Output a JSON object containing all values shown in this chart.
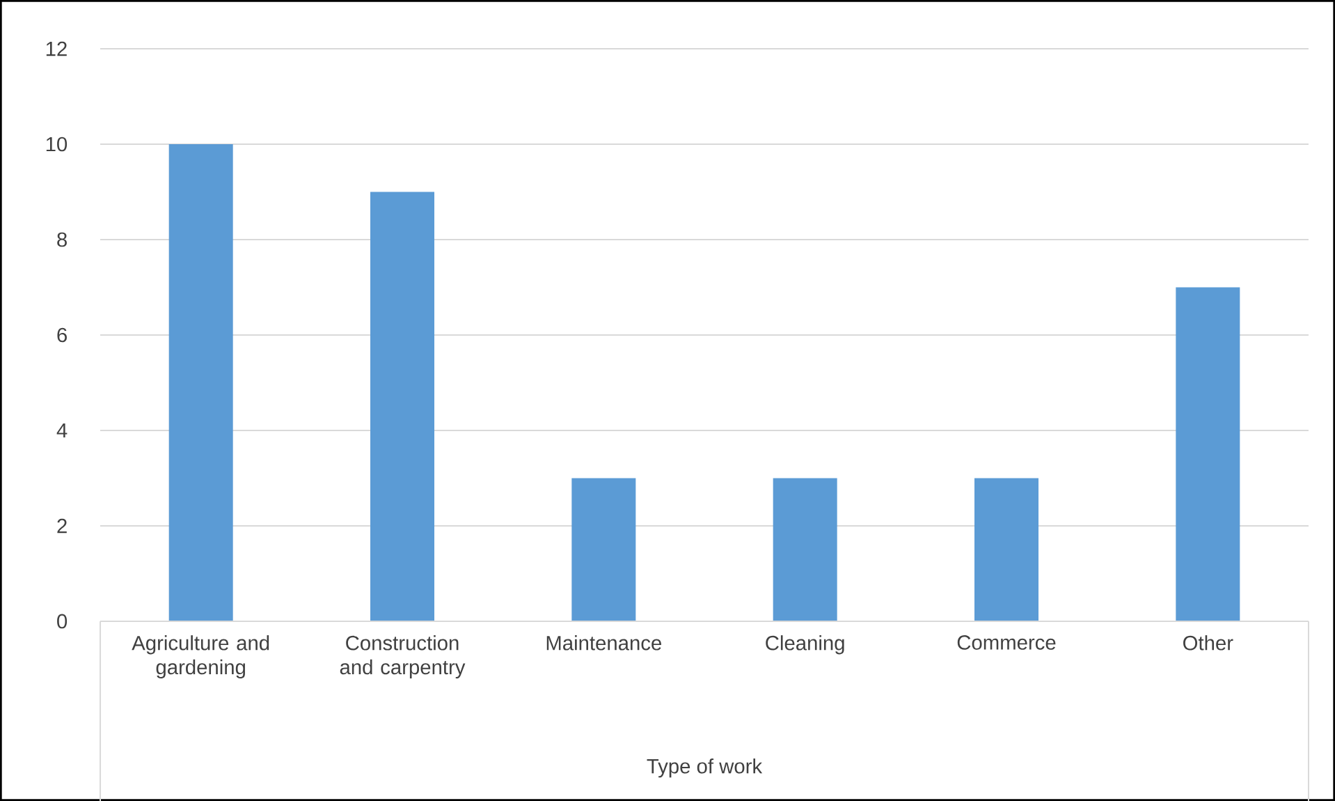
{
  "chart_data": {
    "type": "bar",
    "xlabel": "Type of work",
    "categories": [
      "Agriculture and gardening",
      "Construction and carpentry",
      "Maintenance",
      "Cleaning",
      "Commerce",
      "Other"
    ],
    "values": [
      10,
      9,
      3,
      3,
      3,
      7
    ],
    "color": "#5b9bd5",
    "ylim": [
      0,
      12
    ],
    "yticks": [
      0,
      2,
      4,
      6,
      8,
      10,
      12
    ],
    "grid": true
  }
}
